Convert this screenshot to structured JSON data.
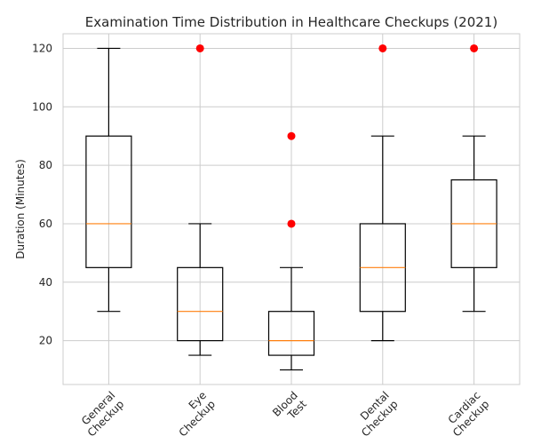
{
  "chart_data": {
    "type": "box",
    "title": "Examination Time Distribution in Healthcare Checkups (2021)",
    "xlabel": "",
    "ylabel": "Duration (Minutes)",
    "ylim": [
      5,
      125
    ],
    "yticks": [
      20,
      40,
      60,
      80,
      100,
      120
    ],
    "grid": true,
    "categories": [
      [
        "General",
        "Checkup"
      ],
      [
        "Eye",
        "Checkup"
      ],
      [
        "Blood",
        "Test"
      ],
      [
        "Dental",
        "Checkup"
      ],
      [
        "Cardiac",
        "Checkup"
      ]
    ],
    "boxes": [
      {
        "min": 30,
        "q1": 45,
        "median": 60,
        "q3": 90,
        "max": 120,
        "outliers": []
      },
      {
        "min": 15,
        "q1": 20,
        "median": 30,
        "q3": 45,
        "max": 60,
        "outliers": [
          120
        ]
      },
      {
        "min": 10,
        "q1": 15,
        "median": 20,
        "q3": 30,
        "max": 45,
        "outliers": [
          60,
          90
        ]
      },
      {
        "min": 20,
        "q1": 30,
        "median": 45,
        "q3": 60,
        "max": 90,
        "outliers": [
          120
        ]
      },
      {
        "min": 30,
        "q1": 45,
        "median": 60,
        "q3": 75,
        "max": 90,
        "outliers": [
          120
        ]
      }
    ],
    "colors": {
      "box": "#000000",
      "median": "#ff7f0e",
      "outlier": "#ff0000",
      "grid": "#cccccc"
    }
  }
}
